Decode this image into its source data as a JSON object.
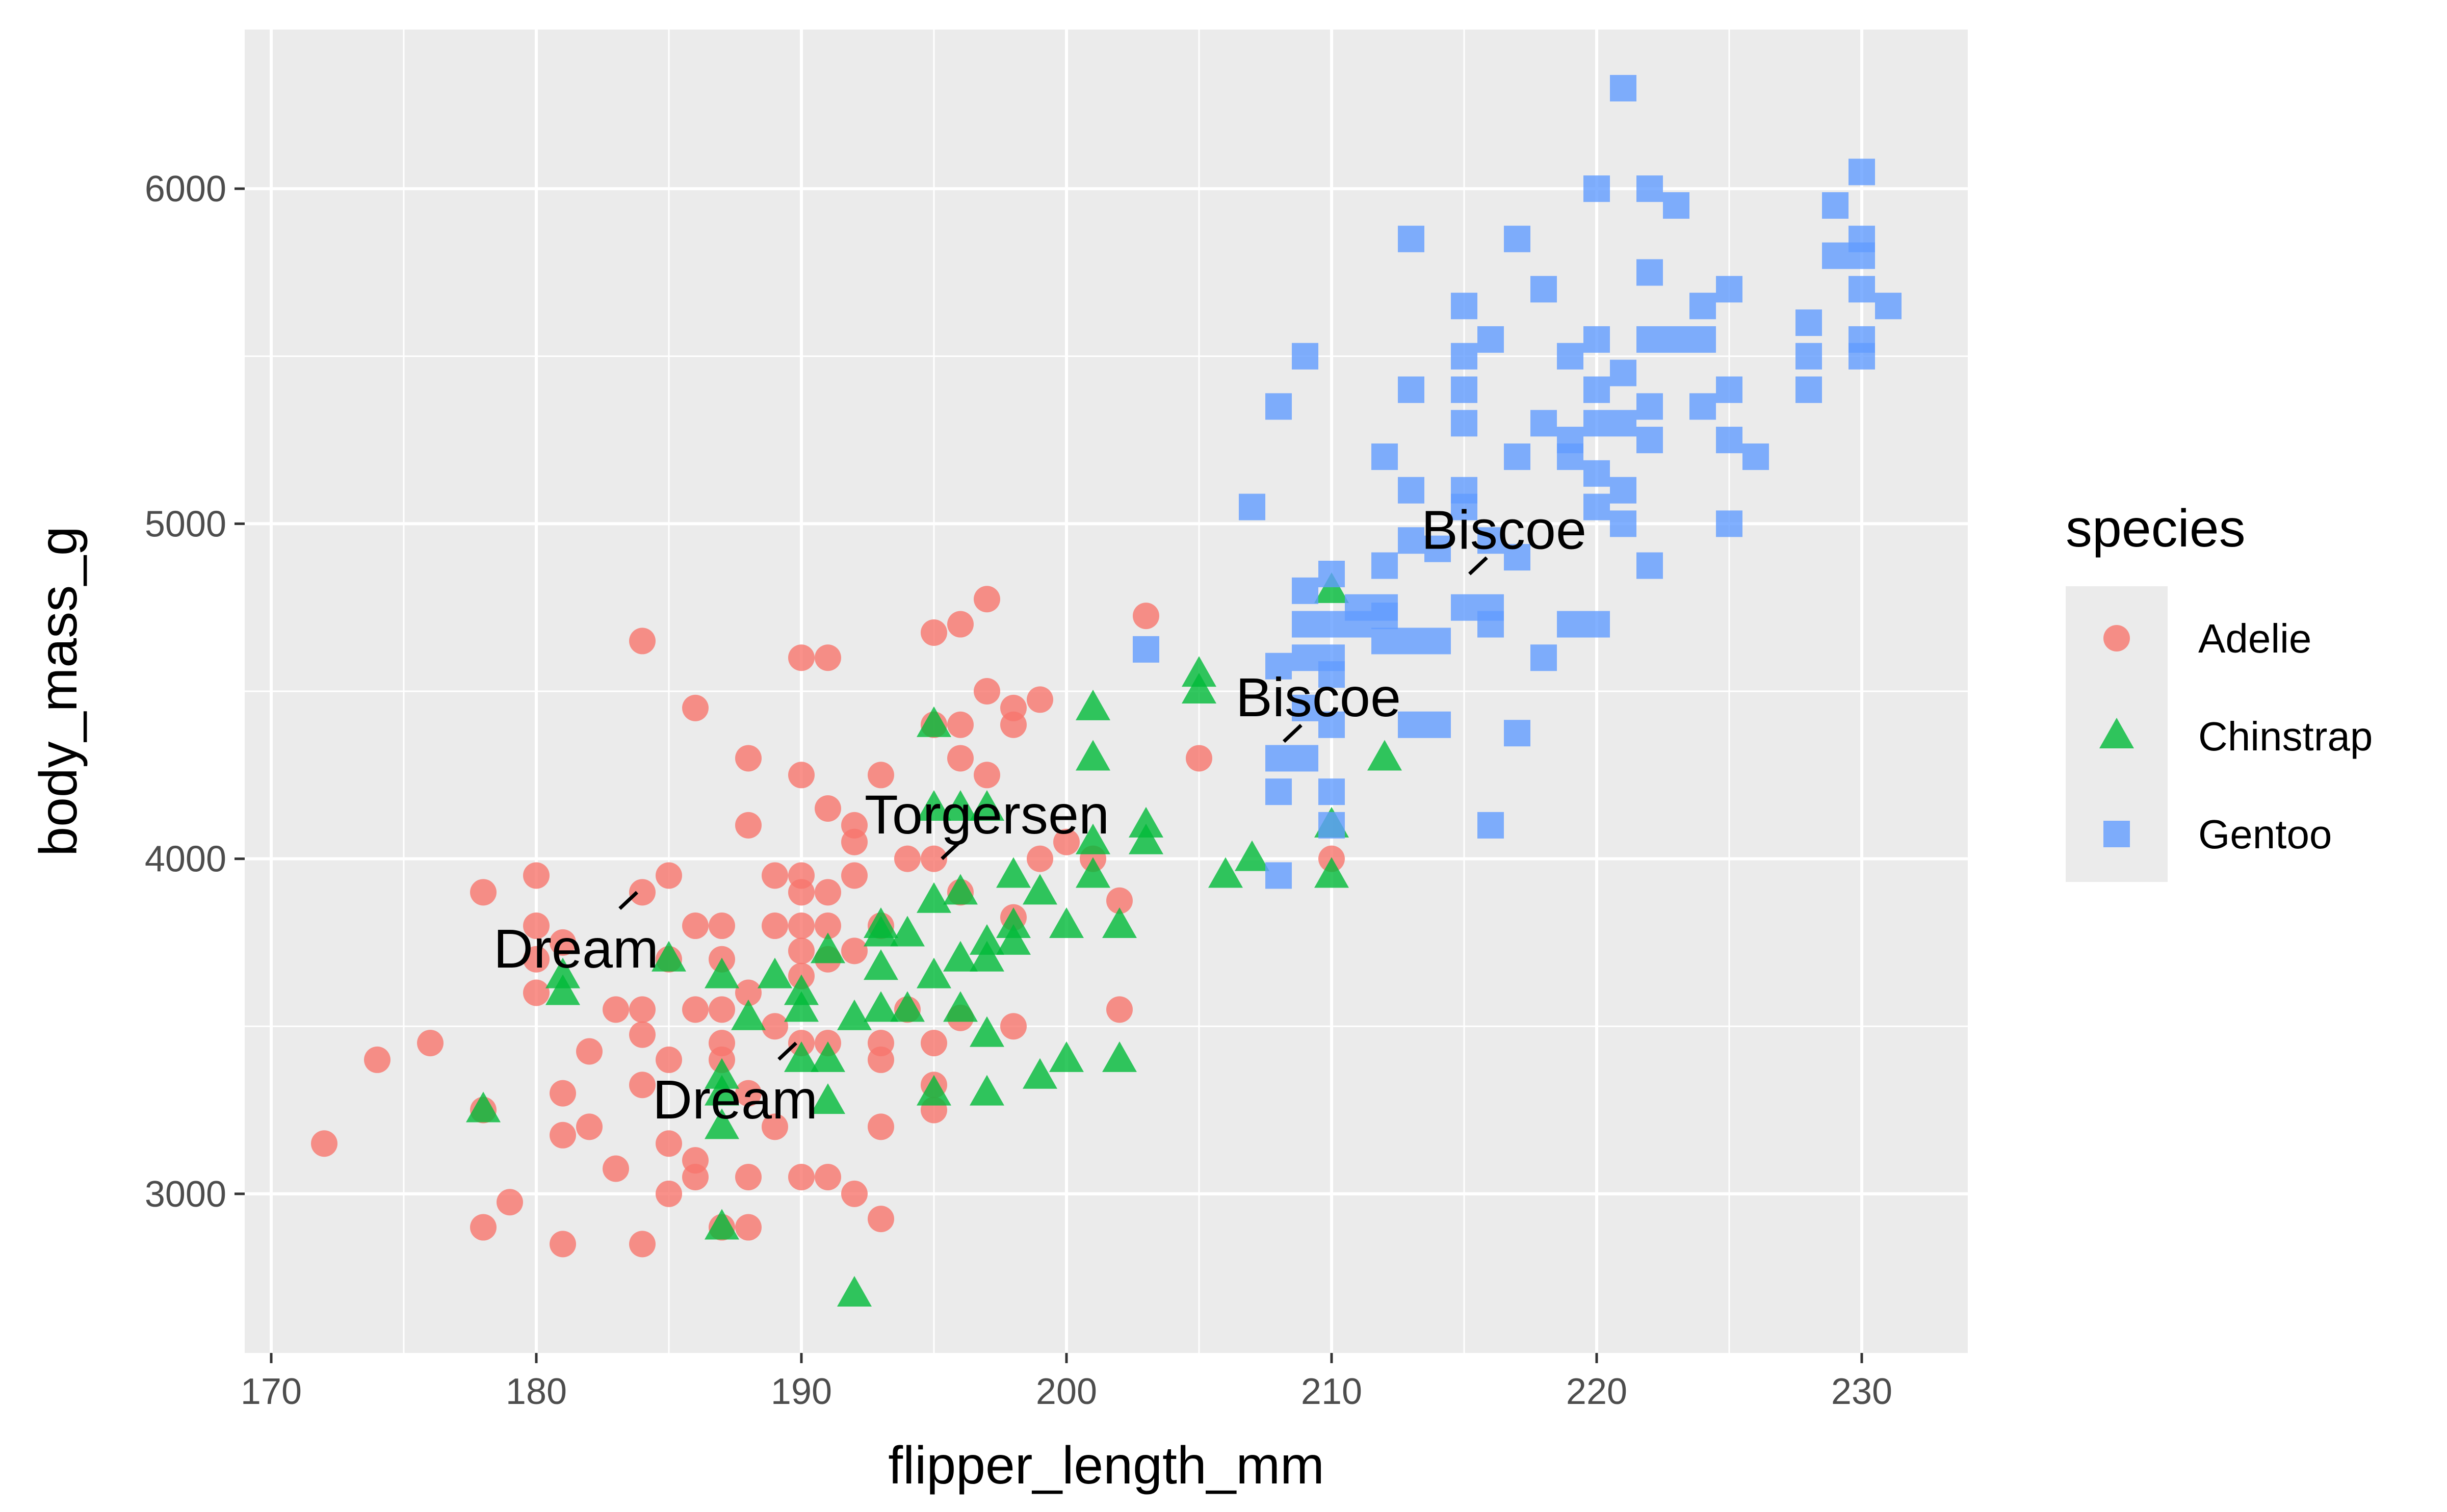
{
  "chart_data": {
    "type": "scatter",
    "title": "",
    "xlabel": "flipper_length_mm",
    "ylabel": "body_mass_g",
    "xlim": [
      169,
      234
    ],
    "ylim": [
      2525,
      6475
    ],
    "x_ticks": [
      170,
      180,
      190,
      200,
      210,
      220,
      230
    ],
    "y_ticks": [
      3000,
      4000,
      5000,
      6000
    ],
    "grid": true,
    "legend": {
      "title": "species",
      "placement": "right"
    },
    "series": [
      {
        "name": "Adelie",
        "color": "#F8766D",
        "marker": "circle",
        "points": [
          [
            172,
            3150
          ],
          [
            174,
            3400
          ],
          [
            176,
            3450
          ],
          [
            178,
            3900
          ],
          [
            178,
            2900
          ],
          [
            178,
            3250
          ],
          [
            179,
            2975
          ],
          [
            180,
            3950
          ],
          [
            180,
            3800
          ],
          [
            180,
            3700
          ],
          [
            180,
            3600
          ],
          [
            181,
            3750
          ],
          [
            181,
            3300
          ],
          [
            181,
            3175
          ],
          [
            181,
            2850
          ],
          [
            182,
            3200
          ],
          [
            182,
            3425
          ],
          [
            183,
            3550
          ],
          [
            183,
            3075
          ],
          [
            184,
            4650
          ],
          [
            184,
            3900
          ],
          [
            184,
            3550
          ],
          [
            184,
            3475
          ],
          [
            184,
            3325
          ],
          [
            184,
            2850
          ],
          [
            185,
            3950
          ],
          [
            185,
            3700
          ],
          [
            185,
            3400
          ],
          [
            185,
            3150
          ],
          [
            185,
            3000
          ],
          [
            186,
            4450
          ],
          [
            186,
            3800
          ],
          [
            186,
            3550
          ],
          [
            186,
            3100
          ],
          [
            186,
            3050
          ],
          [
            187,
            3800
          ],
          [
            187,
            3700
          ],
          [
            187,
            3550
          ],
          [
            187,
            3450
          ],
          [
            187,
            3400
          ],
          [
            187,
            2900
          ],
          [
            188,
            4300
          ],
          [
            188,
            4100
          ],
          [
            188,
            3600
          ],
          [
            188,
            3300
          ],
          [
            188,
            3050
          ],
          [
            188,
            2900
          ],
          [
            189,
            3950
          ],
          [
            189,
            3800
          ],
          [
            189,
            3500
          ],
          [
            189,
            3200
          ],
          [
            190,
            4600
          ],
          [
            190,
            4250
          ],
          [
            190,
            3950
          ],
          [
            190,
            3900
          ],
          [
            190,
            3800
          ],
          [
            190,
            3725
          ],
          [
            190,
            3650
          ],
          [
            190,
            3450
          ],
          [
            190,
            3050
          ],
          [
            191,
            4600
          ],
          [
            191,
            4150
          ],
          [
            191,
            3900
          ],
          [
            191,
            3800
          ],
          [
            191,
            3700
          ],
          [
            191,
            3450
          ],
          [
            191,
            3050
          ],
          [
            192,
            4100
          ],
          [
            192,
            4050
          ],
          [
            192,
            3950
          ],
          [
            192,
            3725
          ],
          [
            192,
            3000
          ],
          [
            193,
            4250
          ],
          [
            193,
            3800
          ],
          [
            193,
            3450
          ],
          [
            193,
            3400
          ],
          [
            193,
            3200
          ],
          [
            193,
            2925
          ],
          [
            194,
            4000
          ],
          [
            194,
            3550
          ],
          [
            195,
            4675
          ],
          [
            195,
            4400
          ],
          [
            195,
            4000
          ],
          [
            195,
            3450
          ],
          [
            195,
            3325
          ],
          [
            195,
            3250
          ],
          [
            196,
            4700
          ],
          [
            196,
            4400
          ],
          [
            196,
            4300
          ],
          [
            196,
            3900
          ],
          [
            196,
            3525
          ],
          [
            197,
            4775
          ],
          [
            197,
            4500
          ],
          [
            197,
            4250
          ],
          [
            198,
            4450
          ],
          [
            198,
            4400
          ],
          [
            198,
            3825
          ],
          [
            198,
            3500
          ],
          [
            199,
            4475
          ],
          [
            199,
            4000
          ],
          [
            200,
            4050
          ],
          [
            201,
            4000
          ],
          [
            202,
            3875
          ],
          [
            202,
            3550
          ],
          [
            203,
            4725
          ],
          [
            205,
            4300
          ],
          [
            210,
            4000
          ]
        ]
      },
      {
        "name": "Chinstrap",
        "color": "#00BA38",
        "marker": "triangle",
        "points": [
          [
            178,
            3250
          ],
          [
            181,
            3650
          ],
          [
            181,
            3600
          ],
          [
            185,
            3700
          ],
          [
            187,
            3650
          ],
          [
            187,
            3350
          ],
          [
            187,
            3300
          ],
          [
            187,
            3200
          ],
          [
            187,
            2900
          ],
          [
            188,
            3525
          ],
          [
            189,
            3650
          ],
          [
            190,
            3600
          ],
          [
            190,
            3400
          ],
          [
            190,
            3550
          ],
          [
            191,
            3725
          ],
          [
            191,
            3400
          ],
          [
            191,
            3275
          ],
          [
            192,
            3525
          ],
          [
            192,
            2700
          ],
          [
            193,
            3800
          ],
          [
            193,
            3775
          ],
          [
            193,
            3675
          ],
          [
            193,
            3550
          ],
          [
            194,
            3775
          ],
          [
            194,
            3550
          ],
          [
            195,
            4400
          ],
          [
            195,
            4150
          ],
          [
            195,
            3875
          ],
          [
            195,
            3650
          ],
          [
            195,
            3300
          ],
          [
            196,
            4150
          ],
          [
            196,
            3900
          ],
          [
            196,
            3700
          ],
          [
            196,
            3550
          ],
          [
            197,
            4150
          ],
          [
            197,
            3750
          ],
          [
            197,
            3700
          ],
          [
            197,
            3475
          ],
          [
            197,
            3300
          ],
          [
            198,
            3950
          ],
          [
            198,
            3800
          ],
          [
            198,
            3750
          ],
          [
            199,
            3900
          ],
          [
            199,
            3350
          ],
          [
            200,
            3800
          ],
          [
            200,
            3400
          ],
          [
            201,
            4450
          ],
          [
            201,
            4300
          ],
          [
            201,
            4050
          ],
          [
            201,
            3950
          ],
          [
            202,
            3800
          ],
          [
            202,
            3400
          ],
          [
            203,
            4100
          ],
          [
            203,
            4050
          ],
          [
            205,
            4550
          ],
          [
            205,
            4500
          ],
          [
            206,
            3950
          ],
          [
            207,
            4000
          ],
          [
            210,
            4800
          ],
          [
            210,
            4100
          ],
          [
            210,
            3950
          ],
          [
            212,
            4300
          ]
        ]
      },
      {
        "name": "Gentoo",
        "color": "#619CFF",
        "marker": "square",
        "points": [
          [
            203,
            4625
          ],
          [
            207,
            5050
          ],
          [
            208,
            5350
          ],
          [
            208,
            4575
          ],
          [
            208,
            4300
          ],
          [
            208,
            4200
          ],
          [
            208,
            3950
          ],
          [
            209,
            5500
          ],
          [
            209,
            4800
          ],
          [
            209,
            4700
          ],
          [
            209,
            4600
          ],
          [
            209,
            4450
          ],
          [
            209,
            4300
          ],
          [
            210,
            4850
          ],
          [
            210,
            4700
          ],
          [
            210,
            4600
          ],
          [
            210,
            4550
          ],
          [
            210,
            4400
          ],
          [
            210,
            4200
          ],
          [
            210,
            4100
          ],
          [
            211,
            4750
          ],
          [
            211,
            4700
          ],
          [
            212,
            5200
          ],
          [
            212,
            4875
          ],
          [
            212,
            4750
          ],
          [
            212,
            4725
          ],
          [
            212,
            4650
          ],
          [
            213,
            5850
          ],
          [
            213,
            5400
          ],
          [
            213,
            5100
          ],
          [
            213,
            4950
          ],
          [
            213,
            4650
          ],
          [
            213,
            4400
          ],
          [
            214,
            4925
          ],
          [
            214,
            4650
          ],
          [
            214,
            4400
          ],
          [
            215,
            5650
          ],
          [
            215,
            5500
          ],
          [
            215,
            5400
          ],
          [
            215,
            5300
          ],
          [
            215,
            5100
          ],
          [
            215,
            5050
          ],
          [
            215,
            4750
          ],
          [
            216,
            5550
          ],
          [
            216,
            4950
          ],
          [
            216,
            4750
          ],
          [
            216,
            4700
          ],
          [
            216,
            4100
          ],
          [
            217,
            5850
          ],
          [
            217,
            5200
          ],
          [
            217,
            4900
          ],
          [
            217,
            4375
          ],
          [
            218,
            5700
          ],
          [
            218,
            5300
          ],
          [
            218,
            4600
          ],
          [
            219,
            5500
          ],
          [
            219,
            5250
          ],
          [
            219,
            5200
          ],
          [
            219,
            4700
          ],
          [
            220,
            6000
          ],
          [
            220,
            5550
          ],
          [
            220,
            5400
          ],
          [
            220,
            5300
          ],
          [
            220,
            5150
          ],
          [
            220,
            5050
          ],
          [
            220,
            4700
          ],
          [
            221,
            6300
          ],
          [
            221,
            5450
          ],
          [
            221,
            5300
          ],
          [
            221,
            5100
          ],
          [
            221,
            5000
          ],
          [
            222,
            6000
          ],
          [
            222,
            5750
          ],
          [
            222,
            5550
          ],
          [
            222,
            5350
          ],
          [
            222,
            5250
          ],
          [
            222,
            4875
          ],
          [
            223,
            5950
          ],
          [
            223,
            5550
          ],
          [
            224,
            5650
          ],
          [
            224,
            5550
          ],
          [
            224,
            5350
          ],
          [
            225,
            5700
          ],
          [
            225,
            5400
          ],
          [
            225,
            5250
          ],
          [
            225,
            5000
          ],
          [
            226,
            5200
          ],
          [
            228,
            5600
          ],
          [
            228,
            5500
          ],
          [
            228,
            5400
          ],
          [
            229,
            5950
          ],
          [
            229,
            5800
          ],
          [
            230,
            6050
          ],
          [
            230,
            5850
          ],
          [
            230,
            5800
          ],
          [
            230,
            5700
          ],
          [
            230,
            5550
          ],
          [
            230,
            5500
          ],
          [
            231,
            5650
          ]
        ]
      }
    ],
    "annotations": [
      {
        "text": "Biscoe",
        "x": 216.5,
        "y": 4980,
        "point": [
          215.2,
          4850
        ]
      },
      {
        "text": "Biscoe",
        "x": 209.5,
        "y": 4480,
        "point": [
          208.2,
          4350
        ]
      },
      {
        "text": "Torgersen",
        "x": 197.0,
        "y": 4130,
        "point": [
          195.3,
          4000
        ]
      },
      {
        "text": "Dream",
        "x": 181.5,
        "y": 3730,
        "point": [
          183.8,
          3900
        ]
      },
      {
        "text": "Dream",
        "x": 187.5,
        "y": 3280,
        "point": [
          189.8,
          3450
        ]
      }
    ]
  }
}
